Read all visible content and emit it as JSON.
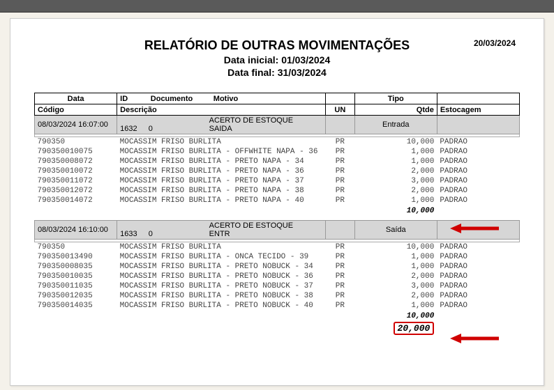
{
  "report": {
    "title": "RELATÓRIO DE OUTRAS MOVIMENTAÇÕES",
    "date_initial_label": "Data inicial: 01/03/2024",
    "date_final_label": "Data final: 31/03/2024",
    "print_date": "20/03/2024"
  },
  "headers1": {
    "data": "Data",
    "id": "ID",
    "documento": "Documento",
    "motivo": "Motivo",
    "tipo": "Tipo"
  },
  "headers2": {
    "codigo": "Código",
    "descricao": "Descrição",
    "un": "UN",
    "qtde": "Qtde",
    "estocagem": "Estocagem"
  },
  "groups": [
    {
      "datetime": "08/03/2024 16:07:00",
      "id": "1632",
      "documento": "0",
      "motivo": "ACERTO DE ESTOQUE SAIDA",
      "tipo": "Entrada",
      "items": [
        {
          "codigo": "790350",
          "descricao": "MOCASSIM FRISO BURLITA",
          "un": "PR",
          "qtde": "10,000",
          "estocagem": "PADRAO"
        },
        {
          "codigo": "790350010075",
          "descricao": "MOCASSIM FRISO BURLITA - OFFWHITE NAPA - 36",
          "un": "PR",
          "qtde": "1,000",
          "estocagem": "PADRAO"
        },
        {
          "codigo": "790350008072",
          "descricao": "MOCASSIM FRISO BURLITA - PRETO NAPA - 34",
          "un": "PR",
          "qtde": "1,000",
          "estocagem": "PADRAO"
        },
        {
          "codigo": "790350010072",
          "descricao": "MOCASSIM FRISO BURLITA - PRETO NAPA - 36",
          "un": "PR",
          "qtde": "2,000",
          "estocagem": "PADRAO"
        },
        {
          "codigo": "790350011072",
          "descricao": "MOCASSIM FRISO BURLITA - PRETO NAPA - 37",
          "un": "PR",
          "qtde": "3,000",
          "estocagem": "PADRAO"
        },
        {
          "codigo": "790350012072",
          "descricao": "MOCASSIM FRISO BURLITA - PRETO NAPA - 38",
          "un": "PR",
          "qtde": "2,000",
          "estocagem": "PADRAO"
        },
        {
          "codigo": "790350014072",
          "descricao": "MOCASSIM FRISO BURLITA - PRETO NAPA - 40",
          "un": "PR",
          "qtde": "1,000",
          "estocagem": "PADRAO"
        }
      ],
      "subtotal": "10,000"
    },
    {
      "datetime": "08/03/2024 16:10:00",
      "id": "1633",
      "documento": "0",
      "motivo": "ACERTO DE ESTOQUE ENTR",
      "tipo": "Saída",
      "items": [
        {
          "codigo": "790350",
          "descricao": "MOCASSIM FRISO BURLITA",
          "un": "PR",
          "qtde": "10,000",
          "estocagem": "PADRAO"
        },
        {
          "codigo": "790350013490",
          "descricao": "MOCASSIM FRISO BURLITA - ONCA TECIDO - 39",
          "un": "PR",
          "qtde": "1,000",
          "estocagem": "PADRAO"
        },
        {
          "codigo": "790350008035",
          "descricao": "MOCASSIM FRISO BURLITA - PRETO NOBUCK - 34",
          "un": "PR",
          "qtde": "1,000",
          "estocagem": "PADRAO"
        },
        {
          "codigo": "790350010035",
          "descricao": "MOCASSIM FRISO BURLITA - PRETO NOBUCK - 36",
          "un": "PR",
          "qtde": "2,000",
          "estocagem": "PADRAO"
        },
        {
          "codigo": "790350011035",
          "descricao": "MOCASSIM FRISO BURLITA - PRETO NOBUCK - 37",
          "un": "PR",
          "qtde": "3,000",
          "estocagem": "PADRAO"
        },
        {
          "codigo": "790350012035",
          "descricao": "MOCASSIM FRISO BURLITA - PRETO NOBUCK - 38",
          "un": "PR",
          "qtde": "2,000",
          "estocagem": "PADRAO"
        },
        {
          "codigo": "790350014035",
          "descricao": "MOCASSIM FRISO BURLITA - PRETO NOBUCK - 40",
          "un": "PR",
          "qtde": "1,000",
          "estocagem": "PADRAO"
        }
      ],
      "subtotal": "10,000"
    }
  ],
  "grand_total": "20,000",
  "colors": {
    "arrow": "#d00000",
    "group_bg": "#d6d6d6"
  },
  "layout": {
    "col_widths_pct": {
      "codigo": 17,
      "descricao": 43,
      "un": 6,
      "qtde": 17,
      "estocagem": 17
    }
  }
}
